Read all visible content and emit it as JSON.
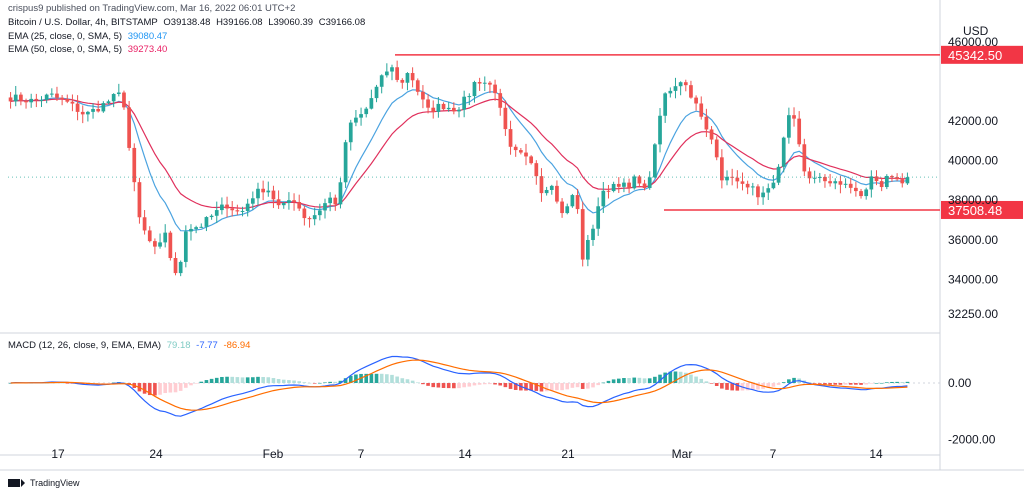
{
  "publisher_line": "crispus9 published on TradingView.com, Mar 16, 2022 06:01 UTC+2",
  "symbol": {
    "name": "Bitcoin / U.S. Dollar, 4h, BITSTAMP",
    "open": "O39138.48",
    "high": "H39166.08",
    "low": "L39060.39",
    "close": "C39166.08"
  },
  "indicators": [
    {
      "label": "EMA (25, close, 0, SMA, 5)",
      "value": "39080.47",
      "color": "#2196f3"
    },
    {
      "label": "EMA (50, close, 0, SMA, 5)",
      "value": "39273.40",
      "color": "#e91e63"
    }
  ],
  "macd_header": {
    "label": "MACD (12, 26, close, 9, EMA, EMA)",
    "hist": "79.18",
    "macd": "-7.77",
    "signal": "-86.94",
    "hist_color": "#80cbc4",
    "macd_color": "#2962ff",
    "signal_color": "#ff6d00"
  },
  "currency": "USD",
  "branding": "TradingView",
  "colors": {
    "up": "#26a69a",
    "down": "#ef5350",
    "level": "#f23645",
    "ema25": "#4ba3e0",
    "ema50": "#e0305c"
  },
  "chart_data": {
    "type": "candlestick",
    "timeframe": "4h",
    "price_axis": {
      "ticks": [
        "46000.00",
        "42000.00",
        "40000.00",
        "38000.00",
        "36000.00",
        "34000.00",
        "32250.00"
      ],
      "tick_values": [
        46000,
        42000,
        40000,
        38000,
        36000,
        34000,
        32250
      ],
      "ylim": [
        31700,
        47000
      ]
    },
    "macd_axis": {
      "ticks": [
        "0.00",
        "-2000.00"
      ],
      "tick_values": [
        0,
        -2000
      ],
      "ylim": [
        -2300,
        1700
      ]
    },
    "x_ticks": [
      "17",
      "24",
      "Feb",
      "7",
      "14",
      "21",
      "Mar",
      "7",
      "14"
    ],
    "levels": [
      {
        "label": "45342.50",
        "value": 45342.5
      },
      {
        "label": "37508.48",
        "value": 37508.48
      }
    ],
    "last_price": 39166.08,
    "close_path": [
      [
        0,
        43200
      ],
      [
        16,
        43000
      ],
      [
        28,
        43300
      ],
      [
        40,
        42900
      ],
      [
        52,
        42300
      ],
      [
        64,
        42800
      ],
      [
        72,
        43200
      ],
      [
        78,
        43400
      ],
      [
        84,
        39700
      ],
      [
        90,
        36900
      ],
      [
        96,
        36000
      ],
      [
        102,
        35300
      ],
      [
        108,
        36500
      ],
      [
        112,
        34800
      ],
      [
        116,
        33900
      ],
      [
        122,
        36600
      ],
      [
        132,
        36700
      ],
      [
        140,
        37200
      ],
      [
        150,
        37800
      ],
      [
        160,
        37300
      ],
      [
        168,
        38200
      ],
      [
        178,
        38700
      ],
      [
        188,
        37500
      ],
      [
        196,
        38200
      ],
      [
        206,
        37000
      ],
      [
        212,
        37300
      ],
      [
        222,
        38100
      ],
      [
        228,
        37800
      ],
      [
        234,
        41500
      ],
      [
        240,
        42100
      ],
      [
        246,
        42400
      ],
      [
        252,
        43300
      ],
      [
        258,
        44100
      ],
      [
        264,
        44800
      ],
      [
        272,
        43800
      ],
      [
        276,
        44500
      ],
      [
        280,
        44100
      ],
      [
        284,
        43400
      ],
      [
        290,
        42500
      ],
      [
        300,
        42800
      ],
      [
        310,
        42600
      ],
      [
        318,
        43200
      ],
      [
        324,
        44100
      ],
      [
        332,
        43900
      ],
      [
        338,
        43500
      ],
      [
        342,
        42000
      ],
      [
        348,
        40500
      ],
      [
        356,
        40200
      ],
      [
        364,
        39900
      ],
      [
        370,
        38300
      ],
      [
        376,
        39100
      ],
      [
        380,
        37900
      ],
      [
        386,
        37200
      ],
      [
        390,
        38400
      ],
      [
        394,
        37800
      ],
      [
        398,
        35100
      ],
      [
        404,
        36300
      ],
      [
        410,
        38100
      ],
      [
        418,
        38800
      ],
      [
        424,
        38900
      ],
      [
        430,
        38500
      ],
      [
        436,
        39300
      ],
      [
        442,
        38300
      ],
      [
        448,
        40500
      ],
      [
        454,
        43200
      ],
      [
        460,
        43700
      ],
      [
        466,
        44100
      ],
      [
        472,
        43600
      ],
      [
        478,
        42600
      ],
      [
        484,
        41500
      ],
      [
        490,
        40800
      ],
      [
        496,
        38800
      ],
      [
        502,
        39300
      ],
      [
        508,
        38600
      ],
      [
        514,
        38900
      ],
      [
        520,
        38000
      ],
      [
        526,
        38300
      ],
      [
        532,
        38900
      ],
      [
        536,
        40300
      ],
      [
        540,
        42300
      ],
      [
        546,
        41900
      ],
      [
        552,
        39600
      ],
      [
        558,
        38900
      ],
      [
        564,
        39200
      ],
      [
        570,
        38800
      ],
      [
        576,
        38900
      ],
      [
        582,
        38700
      ],
      [
        588,
        38600
      ],
      [
        594,
        38100
      ],
      [
        600,
        39200
      ],
      [
        606,
        38500
      ],
      [
        612,
        39400
      ],
      [
        618,
        38900
      ],
      [
        624,
        39166
      ]
    ]
  }
}
